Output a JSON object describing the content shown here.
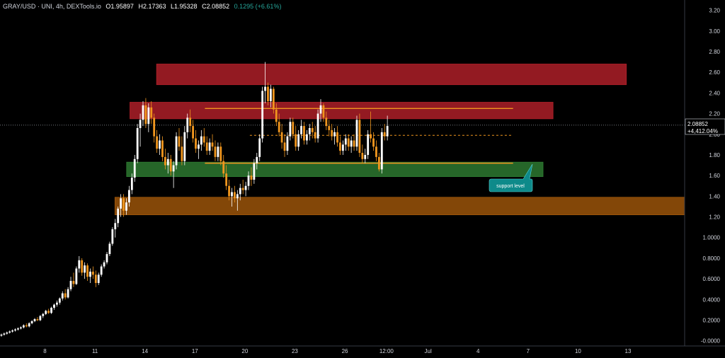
{
  "header": {
    "symbol": "GRAY/USD · UNI, 4h, DEXTools.io",
    "open": "O1.95897",
    "high": "H2.17363",
    "low": "L1.95328",
    "close": "C2.08852",
    "change": "0.1295 (+6.61%)"
  },
  "price_label": {
    "price": "2.08852",
    "pct": "+4,412.04%"
  },
  "annotation": {
    "label": "support level"
  },
  "colors": {
    "background": "#000000",
    "up_candle": "#ffffff",
    "down_candle": "#f0961e",
    "resistance_zone": "#b3202a",
    "support_zone": "#2e7d32",
    "demand_zone": "#a0570a",
    "trend_line": "#f0961e",
    "callout": "#0e8a8a"
  },
  "chart_data": {
    "type": "candlestick",
    "ylim": [
      -0.05,
      3.3
    ],
    "y_ticks": [
      "3.20",
      "3.00",
      "2.80",
      "2.60",
      "2.40",
      "2.20",
      "2.00",
      "1.80",
      "1.60",
      "1.40",
      "1.20",
      "1.0000",
      "0.8000",
      "0.6000",
      "0.4000",
      "0.2000",
      "-0.0000"
    ],
    "y_tick_values": [
      3.2,
      3.0,
      2.8,
      2.6,
      2.4,
      2.2,
      2.0,
      1.8,
      1.6,
      1.4,
      1.2,
      1.0,
      0.8,
      0.6,
      0.4,
      0.2,
      0.0
    ],
    "x_ticks": [
      "8",
      "11",
      "14",
      "17",
      "20",
      "23",
      "26",
      "12:00",
      "Jul",
      "4",
      "7",
      "10",
      "13"
    ],
    "x_tick_days": [
      8,
      11,
      14,
      17,
      20,
      23,
      26,
      28.5,
      31,
      34,
      37,
      40,
      43
    ],
    "x_range_days": [
      5.3,
      46.4
    ],
    "zones": [
      {
        "name": "resistance-upper",
        "from_day": 14.7,
        "to_day": 42.9,
        "low": 2.48,
        "high": 2.68,
        "color": "#b3202a"
      },
      {
        "name": "resistance-lower",
        "from_day": 13.1,
        "to_day": 38.5,
        "low": 2.15,
        "high": 2.31,
        "color": "#b3202a"
      },
      {
        "name": "support",
        "from_day": 12.9,
        "to_day": 37.9,
        "low": 1.59,
        "high": 1.73,
        "color": "#2e7d32"
      },
      {
        "name": "demand",
        "from_day": 12.2,
        "to_day": 46.4,
        "low": 1.22,
        "high": 1.39,
        "color": "#a0570a"
      }
    ],
    "lines": [
      {
        "name": "upper-trend",
        "from_day": 17.6,
        "to_day": 36.1,
        "value": 2.25,
        "style": "solid"
      },
      {
        "name": "lower-trend",
        "from_day": 17.6,
        "to_day": 36.1,
        "value": 1.72,
        "style": "solid"
      },
      {
        "name": "midline",
        "from_day": 20.3,
        "to_day": 36.1,
        "value": 1.99,
        "style": "dashed"
      },
      {
        "name": "last-price",
        "from_day": 5.3,
        "to_day": 46.4,
        "value": 2.08852,
        "style": "dotted"
      }
    ],
    "candles_start_day": 5.3,
    "candle_step_days": 0.1667,
    "candles": [
      [
        0.05,
        0.07,
        0.04,
        0.06
      ],
      [
        0.06,
        0.08,
        0.05,
        0.07
      ],
      [
        0.07,
        0.09,
        0.06,
        0.08
      ],
      [
        0.08,
        0.1,
        0.07,
        0.09
      ],
      [
        0.09,
        0.11,
        0.08,
        0.1
      ],
      [
        0.1,
        0.12,
        0.09,
        0.11
      ],
      [
        0.11,
        0.13,
        0.1,
        0.12
      ],
      [
        0.12,
        0.14,
        0.11,
        0.13
      ],
      [
        0.13,
        0.16,
        0.12,
        0.15
      ],
      [
        0.15,
        0.17,
        0.13,
        0.14
      ],
      [
        0.14,
        0.18,
        0.13,
        0.17
      ],
      [
        0.17,
        0.2,
        0.16,
        0.19
      ],
      [
        0.19,
        0.22,
        0.18,
        0.21
      ],
      [
        0.21,
        0.23,
        0.19,
        0.2
      ],
      [
        0.2,
        0.25,
        0.19,
        0.24
      ],
      [
        0.24,
        0.27,
        0.22,
        0.26
      ],
      [
        0.26,
        0.3,
        0.25,
        0.29
      ],
      [
        0.29,
        0.31,
        0.26,
        0.27
      ],
      [
        0.27,
        0.33,
        0.26,
        0.32
      ],
      [
        0.32,
        0.36,
        0.3,
        0.35
      ],
      [
        0.35,
        0.39,
        0.33,
        0.37
      ],
      [
        0.37,
        0.42,
        0.35,
        0.41
      ],
      [
        0.41,
        0.48,
        0.39,
        0.46
      ],
      [
        0.46,
        0.5,
        0.4,
        0.42
      ],
      [
        0.42,
        0.52,
        0.41,
        0.5
      ],
      [
        0.5,
        0.62,
        0.48,
        0.58
      ],
      [
        0.58,
        0.66,
        0.52,
        0.55
      ],
      [
        0.55,
        0.72,
        0.54,
        0.7
      ],
      [
        0.7,
        0.82,
        0.66,
        0.78
      ],
      [
        0.78,
        0.8,
        0.63,
        0.66
      ],
      [
        0.66,
        0.76,
        0.6,
        0.73
      ],
      [
        0.73,
        0.75,
        0.58,
        0.62
      ],
      [
        0.62,
        0.7,
        0.56,
        0.67
      ],
      [
        0.67,
        0.72,
        0.6,
        0.64
      ],
      [
        0.64,
        0.68,
        0.52,
        0.56
      ],
      [
        0.56,
        0.66,
        0.54,
        0.64
      ],
      [
        0.64,
        0.74,
        0.62,
        0.72
      ],
      [
        0.72,
        0.78,
        0.7,
        0.76
      ],
      [
        0.76,
        0.86,
        0.74,
        0.84
      ],
      [
        0.84,
        0.96,
        0.82,
        0.94
      ],
      [
        0.94,
        1.1,
        0.92,
        1.08
      ],
      [
        1.08,
        1.18,
        1.0,
        1.14
      ],
      [
        1.14,
        1.3,
        1.1,
        1.28
      ],
      [
        1.28,
        1.42,
        1.2,
        1.38
      ],
      [
        1.38,
        1.42,
        1.2,
        1.26
      ],
      [
        1.26,
        1.38,
        1.22,
        1.34
      ],
      [
        1.34,
        1.5,
        1.3,
        1.46
      ],
      [
        1.46,
        1.62,
        1.42,
        1.58
      ],
      [
        1.58,
        1.8,
        1.54,
        1.76
      ],
      [
        1.76,
        2.1,
        1.72,
        2.06
      ],
      [
        2.06,
        2.2,
        1.88,
        2.14
      ],
      [
        2.14,
        2.32,
        2.08,
        2.28
      ],
      [
        2.28,
        2.35,
        2.06,
        2.1
      ],
      [
        2.1,
        2.3,
        2.02,
        2.26
      ],
      [
        2.26,
        2.32,
        2.1,
        2.16
      ],
      [
        2.16,
        2.2,
        1.92,
        1.98
      ],
      [
        1.98,
        2.04,
        1.82,
        1.86
      ],
      [
        1.86,
        2.0,
        1.8,
        1.94
      ],
      [
        1.94,
        1.98,
        1.74,
        1.78
      ],
      [
        1.78,
        1.86,
        1.66,
        1.7
      ],
      [
        1.7,
        1.82,
        1.62,
        1.76
      ],
      [
        1.76,
        1.8,
        1.6,
        1.64
      ],
      [
        1.64,
        1.74,
        1.48,
        1.7
      ],
      [
        1.7,
        2.02,
        1.66,
        1.98
      ],
      [
        1.98,
        2.06,
        1.84,
        1.88
      ],
      [
        1.88,
        1.98,
        1.7,
        1.74
      ],
      [
        1.74,
        2.08,
        1.7,
        2.02
      ],
      [
        2.02,
        2.2,
        1.96,
        2.16
      ],
      [
        2.16,
        2.24,
        2.02,
        2.08
      ],
      [
        2.08,
        2.14,
        1.92,
        1.96
      ],
      [
        1.96,
        2.04,
        1.82,
        1.86
      ],
      [
        1.86,
        1.94,
        1.76,
        1.9
      ],
      [
        1.9,
        2.04,
        1.84,
        1.98
      ],
      [
        1.98,
        2.06,
        1.88,
        1.92
      ],
      [
        1.92,
        1.98,
        1.8,
        1.84
      ],
      [
        1.84,
        1.96,
        1.8,
        1.92
      ],
      [
        1.92,
        2.0,
        1.84,
        1.88
      ],
      [
        1.88,
        1.94,
        1.74,
        1.78
      ],
      [
        1.78,
        1.92,
        1.74,
        1.88
      ],
      [
        1.88,
        1.92,
        1.7,
        1.74
      ],
      [
        1.74,
        1.8,
        1.58,
        1.62
      ],
      [
        1.62,
        1.7,
        1.46,
        1.5
      ],
      [
        1.5,
        1.56,
        1.36,
        1.4
      ],
      [
        1.4,
        1.48,
        1.3,
        1.44
      ],
      [
        1.44,
        1.5,
        1.34,
        1.38
      ],
      [
        1.38,
        1.46,
        1.26,
        1.42
      ],
      [
        1.42,
        1.52,
        1.36,
        1.48
      ],
      [
        1.48,
        1.56,
        1.42,
        1.46
      ],
      [
        1.46,
        1.54,
        1.4,
        1.5
      ],
      [
        1.5,
        1.64,
        1.46,
        1.6
      ],
      [
        1.6,
        1.68,
        1.5,
        1.56
      ],
      [
        1.56,
        1.76,
        1.52,
        1.72
      ],
      [
        1.72,
        1.82,
        1.66,
        1.78
      ],
      [
        1.78,
        2.0,
        1.74,
        1.96
      ],
      [
        1.96,
        2.46,
        1.92,
        2.42
      ],
      [
        2.42,
        2.7,
        2.3,
        2.46
      ],
      [
        2.46,
        2.5,
        2.28,
        2.32
      ],
      [
        2.32,
        2.48,
        2.26,
        2.44
      ],
      [
        2.44,
        2.46,
        2.2,
        2.24
      ],
      [
        2.24,
        2.3,
        2.08,
        2.12
      ],
      [
        2.12,
        2.2,
        1.98,
        2.02
      ],
      [
        2.02,
        2.1,
        1.86,
        1.92
      ],
      [
        1.92,
        2.0,
        1.78,
        1.84
      ],
      [
        1.84,
        2.02,
        1.8,
        1.98
      ],
      [
        1.98,
        2.16,
        1.94,
        2.12
      ],
      [
        2.12,
        2.16,
        1.96,
        2.0
      ],
      [
        2.0,
        2.08,
        1.84,
        1.88
      ],
      [
        1.88,
        2.04,
        1.84,
        2.0
      ],
      [
        2.0,
        2.14,
        1.96,
        2.08
      ],
      [
        2.08,
        2.12,
        1.9,
        1.94
      ],
      [
        1.94,
        2.04,
        1.9,
        2.0
      ],
      [
        2.0,
        2.1,
        1.94,
        2.06
      ],
      [
        2.06,
        2.12,
        1.96,
        2.02
      ],
      [
        2.02,
        2.08,
        1.92,
        1.96
      ],
      [
        1.96,
        2.24,
        1.92,
        2.2
      ],
      [
        2.2,
        2.34,
        2.12,
        2.28
      ],
      [
        2.28,
        2.3,
        2.12,
        2.16
      ],
      [
        2.16,
        2.22,
        2.04,
        2.08
      ],
      [
        2.08,
        2.14,
        1.98,
        2.04
      ],
      [
        2.04,
        2.1,
        1.94,
        1.98
      ],
      [
        1.98,
        2.06,
        1.9,
        2.02
      ],
      [
        2.02,
        2.08,
        1.88,
        1.92
      ],
      [
        1.92,
        1.98,
        1.8,
        1.84
      ],
      [
        1.84,
        1.94,
        1.8,
        1.9
      ],
      [
        1.9,
        2.0,
        1.84,
        1.96
      ],
      [
        1.96,
        2.0,
        1.84,
        1.88
      ],
      [
        1.88,
        1.98,
        1.82,
        1.94
      ],
      [
        1.94,
        2.0,
        1.84,
        1.88
      ],
      [
        1.88,
        2.18,
        1.84,
        2.14
      ],
      [
        2.14,
        2.2,
        1.78,
        1.82
      ],
      [
        1.82,
        1.9,
        1.72,
        1.76
      ],
      [
        1.76,
        1.86,
        1.72,
        1.8
      ],
      [
        1.8,
        2.04,
        1.76,
        2.0
      ],
      [
        2.0,
        2.22,
        1.92,
        1.96
      ],
      [
        1.96,
        2.02,
        1.84,
        1.88
      ],
      [
        1.88,
        1.94,
        1.74,
        1.78
      ],
      [
        1.78,
        1.82,
        1.64,
        1.66
      ],
      [
        1.66,
        2.06,
        1.62,
        2.02
      ],
      [
        2.02,
        2.1,
        1.94,
        1.98
      ],
      [
        1.98,
        2.18,
        1.94,
        2.08
      ]
    ]
  }
}
